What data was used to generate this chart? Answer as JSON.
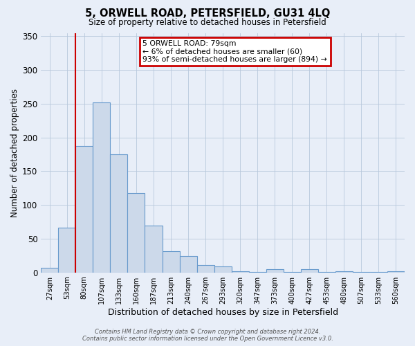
{
  "title": "5, ORWELL ROAD, PETERSFIELD, GU31 4LQ",
  "subtitle": "Size of property relative to detached houses in Petersfield",
  "xlabel": "Distribution of detached houses by size in Petersfield",
  "ylabel": "Number of detached properties",
  "bar_labels": [
    "27sqm",
    "53sqm",
    "80sqm",
    "107sqm",
    "133sqm",
    "160sqm",
    "187sqm",
    "213sqm",
    "240sqm",
    "267sqm",
    "293sqm",
    "320sqm",
    "347sqm",
    "373sqm",
    "400sqm",
    "427sqm",
    "453sqm",
    "480sqm",
    "507sqm",
    "533sqm",
    "560sqm"
  ],
  "bar_values": [
    7,
    66,
    187,
    252,
    175,
    118,
    69,
    31,
    24,
    11,
    9,
    2,
    1,
    5,
    1,
    5,
    1,
    2,
    1,
    1,
    2
  ],
  "bar_color": "#ccd9ea",
  "bar_edge_color": "#6699cc",
  "ylim": [
    0,
    355
  ],
  "yticks": [
    0,
    50,
    100,
    150,
    200,
    250,
    300,
    350
  ],
  "vline_x": 2,
  "vline_color": "#cc0000",
  "annotation_title": "5 ORWELL ROAD: 79sqm",
  "annotation_line1": "← 6% of detached houses are smaller (60)",
  "annotation_line2": "93% of semi-detached houses are larger (894) →",
  "annotation_box_edge_color": "#cc0000",
  "footer_line1": "Contains HM Land Registry data © Crown copyright and database right 2024.",
  "footer_line2": "Contains public sector information licensed under the Open Government Licence v3.0.",
  "bg_color": "#e8eef8",
  "plot_bg_color": "#e8eef8"
}
